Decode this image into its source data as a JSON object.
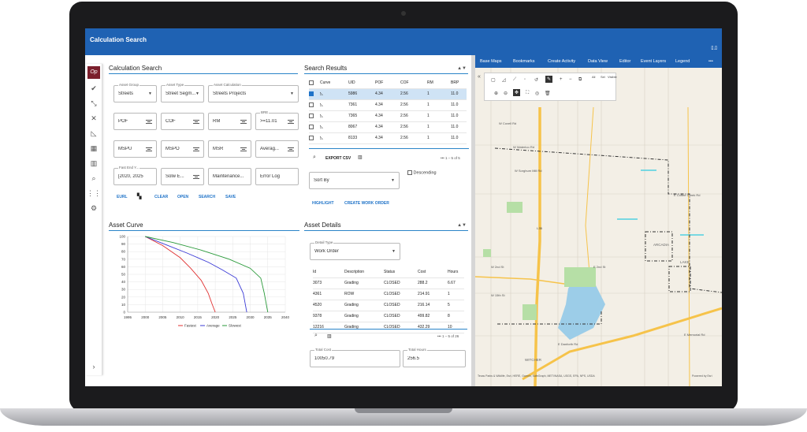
{
  "app": {
    "title": "Calculation Search",
    "logo": "ﾛ.ﾛ",
    "brand": "Op"
  },
  "tools": [
    "check-icon",
    "collapse-icon",
    "wrench-icon",
    "ruler-icon",
    "calculator-icon",
    "bar-chart-icon",
    "search-icon",
    "grid-icon",
    "gear-icon"
  ],
  "calc": {
    "heading": "Calculation Search",
    "fields": {
      "asset_group": {
        "label": "Asset Group",
        "value": "Streets"
      },
      "asset_type": {
        "label": "Asset Type",
        "value": "Street Segm..."
      },
      "asset_calc": {
        "label": "Asset Calculation",
        "value": "Streets Projects"
      },
      "pof": "POF",
      "cof": "COF",
      "rm": "RM",
      "bre": {
        "label": "BRE",
        "value": ">=11.01"
      },
      "mspu": "MSPU",
      "mspo": "MSPO",
      "msr": "MSR",
      "avg": "Averag...",
      "fast_end": {
        "label": "Fast End Y...",
        "value": "[2020, 2025"
      },
      "solw": "Solw E...",
      "maint": "Maintenance...",
      "error": "Error Log"
    },
    "buttons": {
      "eurl": "EURL",
      "clear": "CLEAR",
      "open": "OPEN",
      "search": "SEARCH",
      "save": "SAVE"
    }
  },
  "results": {
    "heading": "Search Results",
    "columns": [
      "Curve",
      "UID",
      "POF",
      "COF",
      "RM",
      "BRP"
    ],
    "rows": [
      {
        "uid": "5986",
        "pof": "4.34",
        "cof": "2.56",
        "rm": "1",
        "brp": "11.0",
        "selected": true
      },
      {
        "uid": "7361",
        "pof": "4.34",
        "cof": "2.56",
        "rm": "1",
        "brp": "11.0",
        "selected": false
      },
      {
        "uid": "7365",
        "pof": "4.34",
        "cof": "2.56",
        "rm": "1",
        "brp": "11.0",
        "selected": false
      },
      {
        "uid": "8067",
        "pof": "4.34",
        "cof": "2.56",
        "rm": "1",
        "brp": "11.0",
        "selected": false
      },
      {
        "uid": "8133",
        "pof": "4.34",
        "cof": "2.56",
        "rm": "1",
        "brp": "11.0",
        "selected": false
      }
    ],
    "pager": "1 – 5 of 5",
    "export_label": "EXPORT CSV",
    "descending": "Descending",
    "sort_by": "Sort By",
    "highlight": "HIGHLIGHT",
    "create_wo": "CREATE WORK ORDER"
  },
  "curve": {
    "heading": "Asset Curve",
    "legend": [
      "Fastest",
      "Average",
      "Slowest"
    ]
  },
  "details": {
    "heading": "Asset Details",
    "detail_type": {
      "label": "Detail Type",
      "value": "Work Order"
    },
    "columns": [
      "Id",
      "Description",
      "Status",
      "Cost",
      "Hours"
    ],
    "rows": [
      {
        "id": "3073",
        "desc": "Grading",
        "status": "CLOSED",
        "cost": "288.2",
        "hours": "6.67"
      },
      {
        "id": "4361",
        "desc": "ROW",
        "status": "CLOSED",
        "cost": "214.91",
        "hours": "1"
      },
      {
        "id": "4520",
        "desc": "Grading",
        "status": "CLOSED",
        "cost": "216.14",
        "hours": "5"
      },
      {
        "id": "9378",
        "desc": "Grading",
        "status": "CLOSED",
        "cost": "499.82",
        "hours": "8"
      },
      {
        "id": "12216",
        "desc": "Grading",
        "status": "CLOSED",
        "cost": "432.29",
        "hours": "10"
      }
    ],
    "pager": "1 – 5 of 26",
    "total_cost": {
      "label": "Total Cost",
      "value": "10050.79"
    },
    "total_hours": {
      "label": "Total Hours",
      "value": "256.5"
    }
  },
  "map": {
    "nav": [
      "Base Maps",
      "Bookmarks",
      "Create Activity",
      "Data View",
      "Editor",
      "Event Layers",
      "Legend",
      "•••"
    ],
    "tool_labels": {
      "all": "All",
      "sel": "Sel",
      "visible": "Visible"
    },
    "labels": {
      "waterloo": "W Waterloo Rd",
      "sorghum": "W Sorghum Mill Rd",
      "covell": "W Covell Rd",
      "coffee": "E Coffee Creek Rd",
      "second": "W 2nd St",
      "second_e": "E 2nd St",
      "fifteenth": "W 15th St",
      "memorial": "E Memorial Rd",
      "danforth": "E Danforth Rd",
      "arcadia": "ARCADIA",
      "lake": "LAKE",
      "witcher": "WITCHER",
      "i35": "I-35"
    },
    "attribution": "Texas Parks & Wildlife, Esri, HERE, Garmin, SafeGraph, METI/NASA, USGS, EPA, NPS, USDA",
    "powered": "Powered by Esri",
    "water": "#9ccde8",
    "park": "#b6dfa6",
    "road": "#f6c34a"
  },
  "chart_data": {
    "type": "line",
    "title": "",
    "xlabel": "",
    "ylabel": "",
    "xlim": [
      1995,
      2040
    ],
    "ylim": [
      0,
      100
    ],
    "xticks": [
      1995,
      2000,
      2005,
      2010,
      2015,
      2020,
      2025,
      2030,
      2035,
      2040
    ],
    "yticks": [
      0,
      10,
      20,
      30,
      40,
      50,
      60,
      70,
      80,
      90,
      100
    ],
    "series": [
      {
        "name": "Fastest",
        "color": "#e03030",
        "x": [
          2000,
          2005,
          2010,
          2013,
          2016,
          2018,
          2019,
          2020
        ],
        "y": [
          100,
          88,
          72,
          58,
          42,
          25,
          12,
          0
        ]
      },
      {
        "name": "Average",
        "color": "#3b3bd6",
        "x": [
          2000,
          2006,
          2012,
          2018,
          2022,
          2026,
          2028,
          2029
        ],
        "y": [
          100,
          89,
          78,
          66,
          56,
          45,
          25,
          0
        ]
      },
      {
        "name": "Slowest",
        "color": "#2a9a3a",
        "x": [
          2000,
          2008,
          2016,
          2024,
          2030,
          2033,
          2034,
          2035
        ],
        "y": [
          100,
          92,
          82,
          70,
          58,
          45,
          25,
          0
        ]
      }
    ],
    "grid": true,
    "legend": "bottom"
  }
}
